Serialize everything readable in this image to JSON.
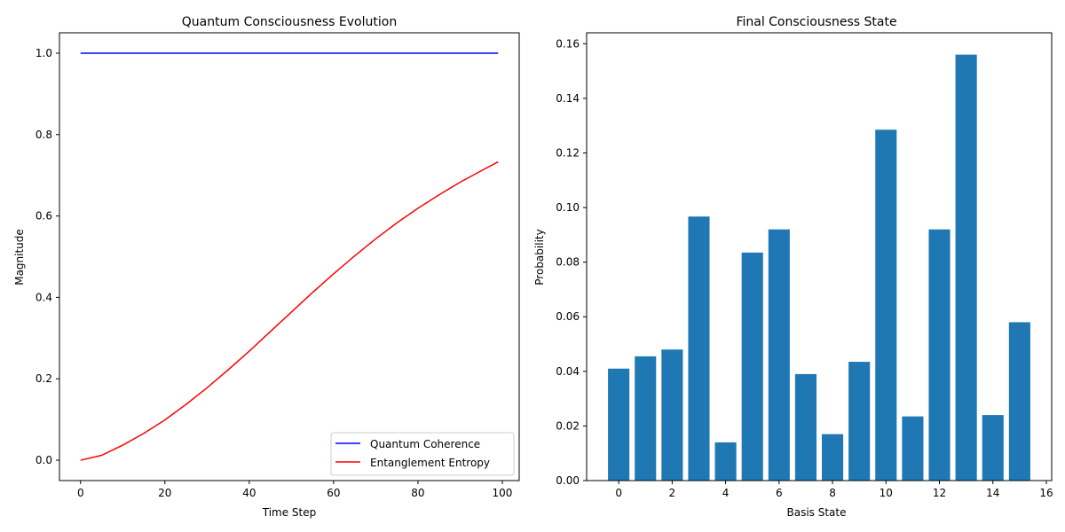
{
  "chart_data": [
    {
      "type": "line",
      "title": "Quantum Consciousness Evolution",
      "xlabel": "Time Step",
      "ylabel": "Magnitude",
      "xlim": [
        -5,
        104
      ],
      "ylim": [
        -0.05,
        1.05
      ],
      "xticks": [
        0,
        20,
        40,
        60,
        80,
        100
      ],
      "yticks": [
        0.0,
        0.2,
        0.4,
        0.6,
        0.8,
        1.0
      ],
      "xtick_labels": [
        "0",
        "20",
        "40",
        "60",
        "80",
        "100"
      ],
      "ytick_labels": [
        "0.0",
        "0.2",
        "0.4",
        "0.6",
        "0.8",
        "1.0"
      ],
      "legend_position": "lower-right",
      "grid": false,
      "series": [
        {
          "name": "Quantum Coherence",
          "color": "#0000ff",
          "x": [
            0,
            99
          ],
          "y": [
            1.0,
            1.0
          ]
        },
        {
          "name": "Entanglement Entropy",
          "color": "#ff0000",
          "x": [
            0,
            5,
            10,
            15,
            20,
            25,
            30,
            35,
            40,
            45,
            50,
            55,
            60,
            65,
            70,
            75,
            80,
            85,
            90,
            95,
            99
          ],
          "y": [
            0.0,
            0.012,
            0.037,
            0.066,
            0.099,
            0.137,
            0.178,
            0.222,
            0.268,
            0.316,
            0.364,
            0.412,
            0.458,
            0.502,
            0.544,
            0.583,
            0.619,
            0.652,
            0.683,
            0.711,
            0.733
          ]
        }
      ]
    },
    {
      "type": "bar",
      "title": "Final Consciousness State",
      "xlabel": "Basis State",
      "ylabel": "Probability",
      "xlim": [
        -1.2,
        16.2
      ],
      "ylim": [
        0,
        0.164
      ],
      "xticks": [
        0,
        2,
        4,
        6,
        8,
        10,
        12,
        14,
        16
      ],
      "yticks": [
        0.0,
        0.02,
        0.04,
        0.06,
        0.08,
        0.1,
        0.12,
        0.14,
        0.16
      ],
      "xtick_labels": [
        "0",
        "2",
        "4",
        "6",
        "8",
        "10",
        "12",
        "14",
        "16"
      ],
      "ytick_labels": [
        "0.00",
        "0.02",
        "0.04",
        "0.06",
        "0.08",
        "0.10",
        "0.12",
        "0.14",
        "0.16"
      ],
      "grid": false,
      "bar_color": "#1f77b4",
      "categories": [
        0,
        1,
        2,
        3,
        4,
        5,
        6,
        7,
        8,
        9,
        10,
        11,
        12,
        13,
        14,
        15
      ],
      "values": [
        0.041,
        0.0455,
        0.048,
        0.0967,
        0.014,
        0.0835,
        0.092,
        0.039,
        0.017,
        0.0435,
        0.1285,
        0.0235,
        0.092,
        0.156,
        0.024,
        0.058
      ]
    }
  ]
}
